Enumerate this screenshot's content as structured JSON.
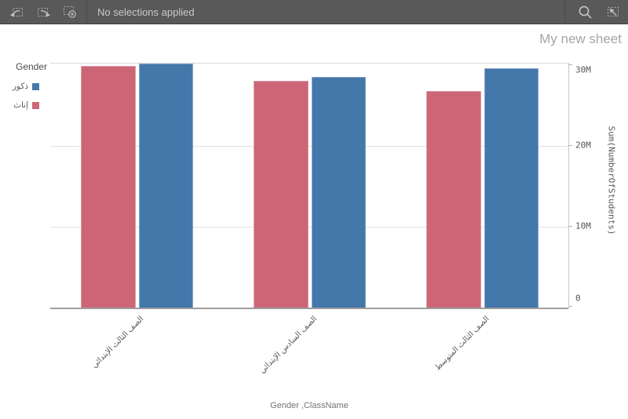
{
  "toolbar": {
    "selections_status": "No selections applied"
  },
  "icons": {
    "left": [
      "undo-icon",
      "redo-icon",
      "clear-selections-icon"
    ],
    "right": [
      "search-icon",
      "selections-tool-icon"
    ]
  },
  "sheet": {
    "title": "My new sheet"
  },
  "legend": {
    "title": "Gender",
    "items": [
      {
        "label": "ذكور",
        "color": "#4477aa"
      },
      {
        "label": "إناث",
        "color": "#cc6677"
      }
    ]
  },
  "chart_data": {
    "type": "bar",
    "title": "",
    "categories": [
      "الصف الثالث الإبتدائي",
      "الصف السادس الإبتدائي",
      "الصف الثالث المتوسط"
    ],
    "series": [
      {
        "name": "إناث",
        "color": "#cc6677",
        "values": [
          29900000,
          28100000,
          26800000
        ]
      },
      {
        "name": "ذكور",
        "color": "#4477aa",
        "values": [
          30200000,
          28500000,
          29600000
        ]
      }
    ],
    "xlabel": "Gender ,ClassName",
    "ylabel": "Sum(NumberOfStudents)",
    "ylim": [
      0,
      30200000
    ],
    "y_ticks": [
      {
        "value": 0,
        "label": "0"
      },
      {
        "value": 10000000,
        "label": "10M"
      },
      {
        "value": 20000000,
        "label": "20M"
      },
      {
        "value": 30000000,
        "label": "30M"
      }
    ],
    "grid": true,
    "legend_position": "top-left"
  }
}
